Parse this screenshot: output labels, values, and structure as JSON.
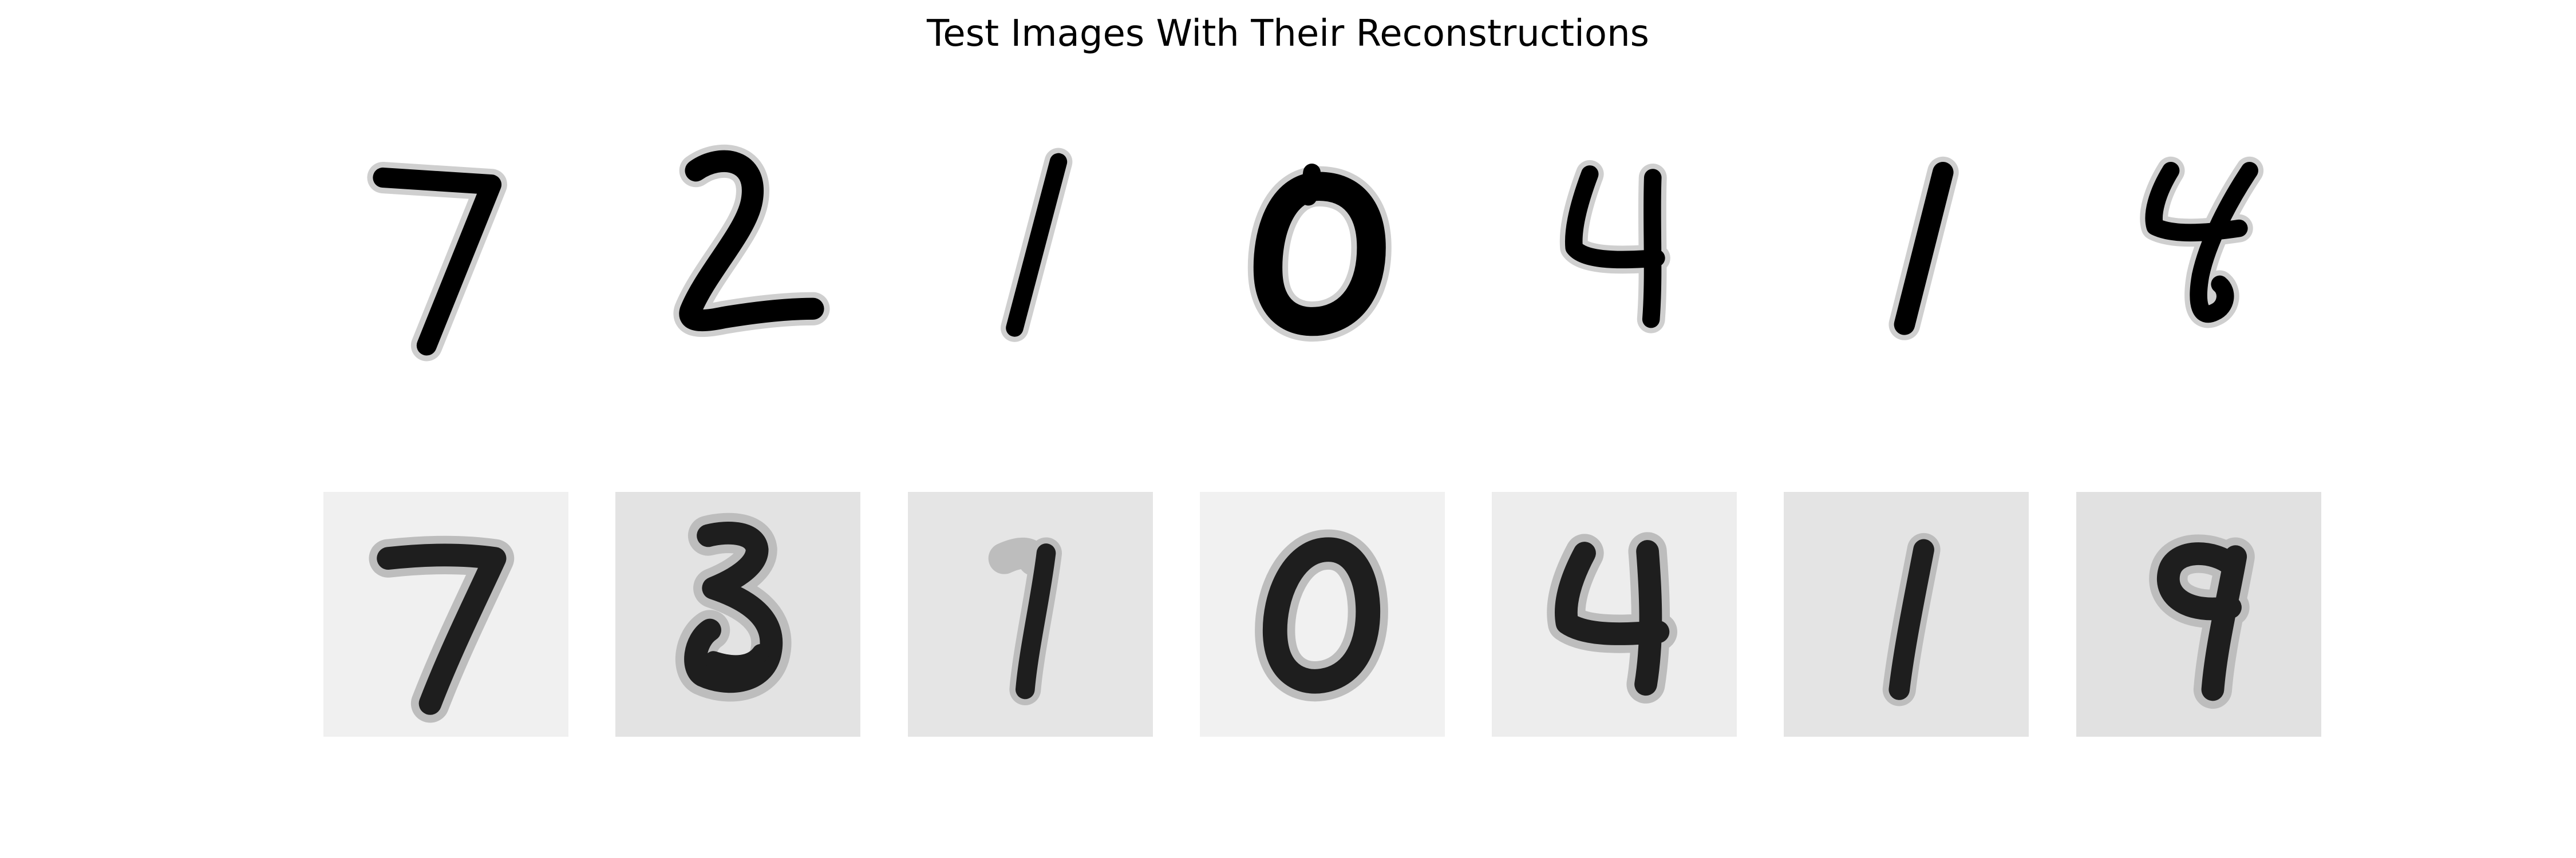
{
  "figure": {
    "title": "Test Images With Their Reconstructions"
  },
  "originals": [
    {
      "digit": "7",
      "background": "#ffffff"
    },
    {
      "digit": "2",
      "background": "#ffffff"
    },
    {
      "digit": "1",
      "background": "#ffffff"
    },
    {
      "digit": "0",
      "background": "#ffffff"
    },
    {
      "digit": "4",
      "background": "#ffffff"
    },
    {
      "digit": "1",
      "background": "#ffffff"
    },
    {
      "digit": "4",
      "background": "#ffffff"
    }
  ],
  "reconstructions": [
    {
      "looks_like": "7",
      "background": "#f0f0f0"
    },
    {
      "looks_like": "3",
      "background": "#e3e3e3"
    },
    {
      "looks_like": "1",
      "background": "#e5e5e5"
    },
    {
      "looks_like": "0",
      "background": "#f1f1f1"
    },
    {
      "looks_like": "4",
      "background": "#ededed"
    },
    {
      "looks_like": "1",
      "background": "#e4e4e4"
    },
    {
      "looks_like": "9",
      "background": "#e1e1e1"
    }
  ]
}
